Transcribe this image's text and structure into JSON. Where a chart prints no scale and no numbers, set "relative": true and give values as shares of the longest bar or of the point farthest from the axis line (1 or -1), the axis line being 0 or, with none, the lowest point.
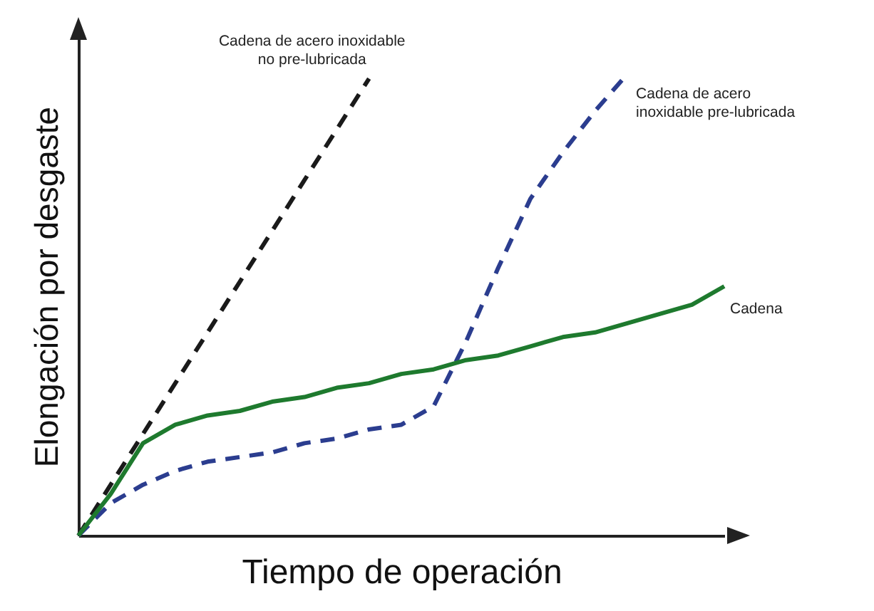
{
  "chart_data": {
    "type": "line",
    "relative": true,
    "xlabel": "Tiempo de operación",
    "ylabel": "Elongación por desgaste",
    "categories": [
      null,
      null,
      null,
      null,
      null,
      null,
      null,
      null,
      null,
      null,
      null,
      null,
      null,
      null,
      null,
      null,
      null,
      null,
      null,
      null,
      null
    ],
    "series": [
      {
        "name": "Cadena de acero inoxidable no pre-lubricada",
        "color": "#1a1a1a",
        "line_style": "dashed",
        "values": [
          0,
          0.11,
          0.22,
          0.33,
          0.44,
          0.55,
          0.66,
          0.77,
          0.88,
          0.99,
          null,
          null,
          null,
          null,
          null,
          null,
          null,
          null,
          null,
          null,
          null
        ]
      },
      {
        "name": "Cadena de acero inoxidable pre-lubricada",
        "color": "#2b3d8f",
        "line_style": "dashed",
        "values": [
          0,
          0.07,
          0.11,
          0.14,
          0.16,
          0.17,
          0.18,
          0.2,
          0.21,
          0.23,
          0.24,
          0.28,
          0.42,
          0.58,
          0.73,
          0.83,
          0.92,
          1,
          null,
          null,
          null
        ]
      },
      {
        "name": "Cadena",
        "color": "#1e7a2e",
        "line_style": "solid",
        "values": [
          0,
          0.09,
          0.2,
          0.24,
          0.26,
          0.27,
          0.29,
          0.3,
          0.32,
          0.33,
          0.35,
          0.36,
          0.38,
          0.39,
          0.41,
          0.43,
          0.44,
          0.46,
          0.48,
          0.5,
          0.54
        ]
      }
    ],
    "grid": false,
    "marker": "none"
  }
}
